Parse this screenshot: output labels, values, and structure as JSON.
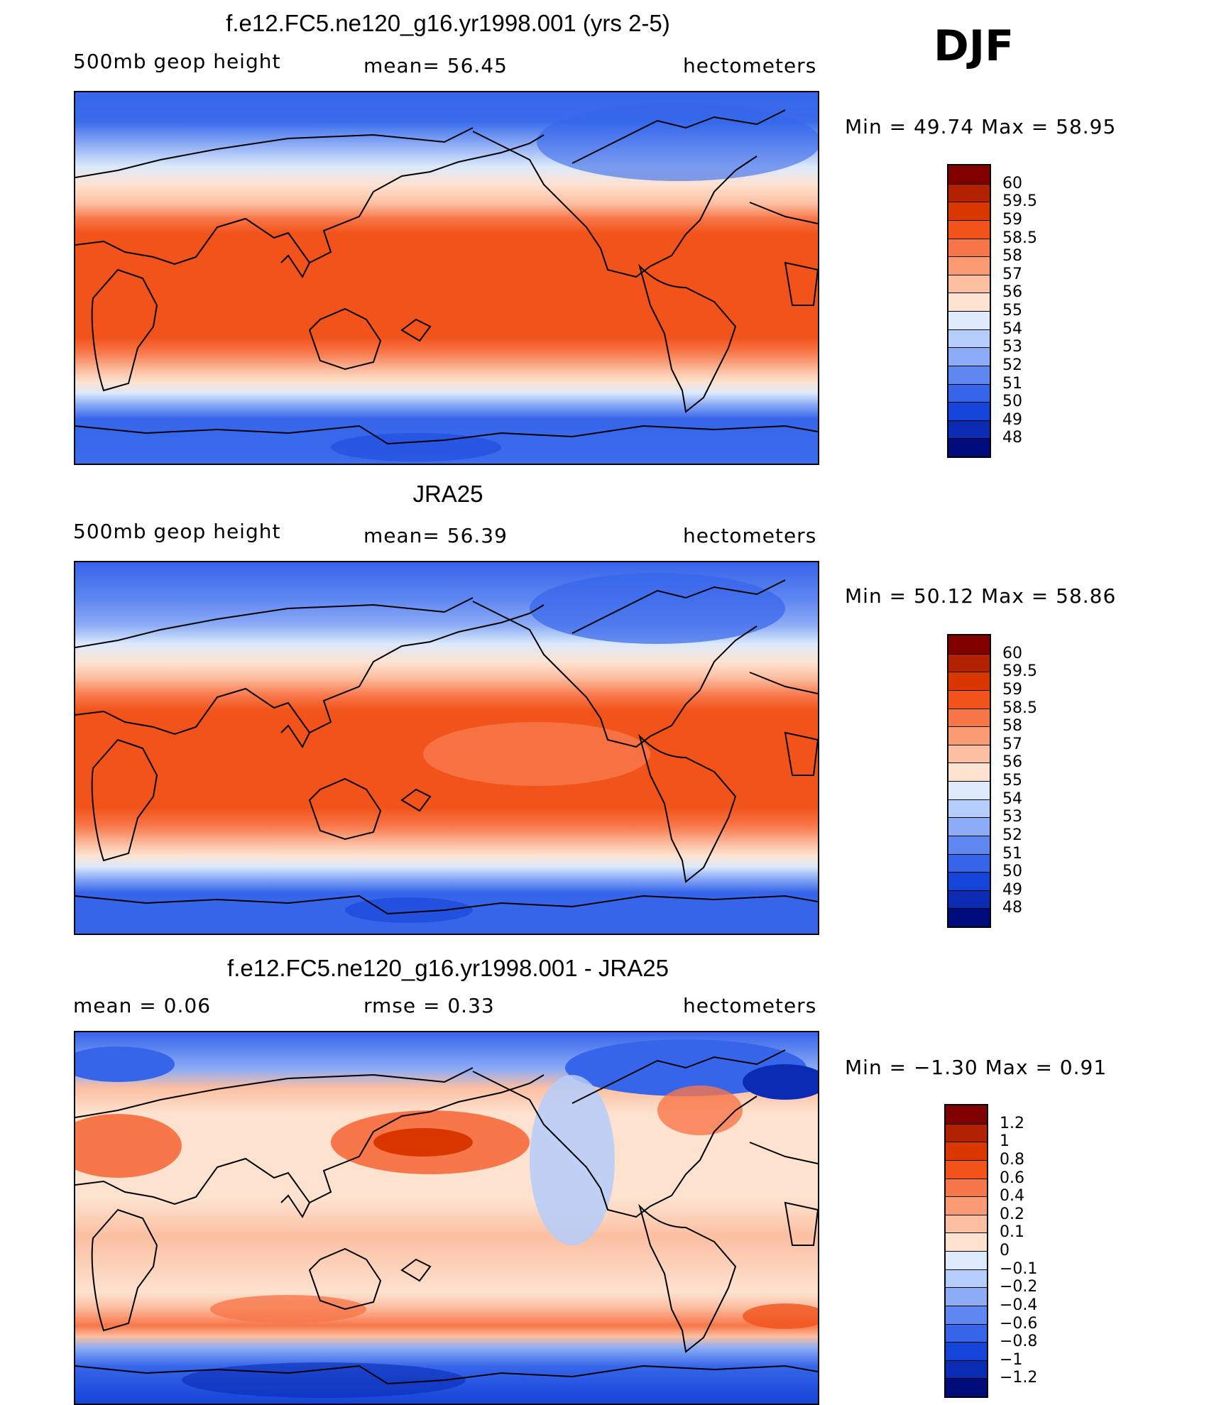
{
  "season": "DJF",
  "panels": [
    {
      "id": "model",
      "title": "f.e12.FC5.ne120_g16.yr1998.001 (yrs 2-5)",
      "left_label": "500mb  geop  height",
      "center_label": "mean=   56.45",
      "right_label": "hectometers",
      "minmax": "Min  =    49.74  Max  =    58.95",
      "kind": "field"
    },
    {
      "id": "obs",
      "title": "JRA25",
      "left_label": "500mb  geop  height",
      "center_label": "mean=   56.39",
      "right_label": "hectometers",
      "minmax": "Min  =    50.12  Max  =    58.86",
      "kind": "field"
    },
    {
      "id": "diff",
      "title": "f.e12.FC5.ne120_g16.yr1998.001 - JRA25",
      "left_label": "mean  =      0.06",
      "center_label": "rmse  =      0.33",
      "right_label": "hectometers",
      "minmax": "Min  =    −1.30  Max  =      0.91",
      "kind": "diff"
    }
  ],
  "colorbars": {
    "field": {
      "labels": [
        "60",
        "59.5",
        "59",
        "58.5",
        "58",
        "57",
        "56",
        "55",
        "54",
        "53",
        "52",
        "51",
        "50",
        "49",
        "48"
      ],
      "colors": [
        "#800000",
        "#b22200",
        "#d93600",
        "#f1531a",
        "#f8774a",
        "#fa9b74",
        "#fcbfa2",
        "#fde2cf",
        "#dbe9fb",
        "#b4cdfa",
        "#8dacf6",
        "#5f87f1",
        "#3665ea",
        "#1544d9",
        "#0a2cb4",
        "#000c7a"
      ]
    },
    "diff": {
      "labels": [
        "1.2",
        "1",
        "0.8",
        "0.6",
        "0.4",
        "0.2",
        "0.1",
        "0",
        "−0.1",
        "−0.2",
        "−0.4",
        "−0.6",
        "−0.8",
        "−1",
        "−1.2"
      ],
      "colors": [
        "#800000",
        "#b22200",
        "#d93600",
        "#f1531a",
        "#f8774a",
        "#fa9b74",
        "#fcbfa2",
        "#fde2cf",
        "#dbe9fb",
        "#b4cdfa",
        "#8dacf6",
        "#5f87f1",
        "#3665ea",
        "#1544d9",
        "#0a2cb4",
        "#000c7a"
      ]
    }
  }
}
